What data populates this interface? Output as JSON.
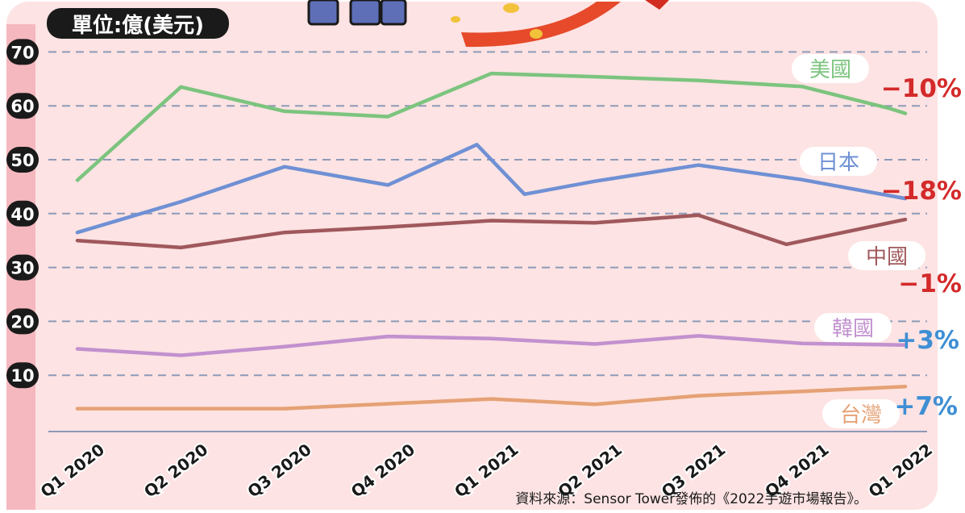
{
  "unit_label": "單位:億(美元)",
  "source_note": "資料來源：Sensor Tower發佈的《2022手遊市場報告》。",
  "colors": {
    "panel": "#fde3e3",
    "left_bar": "#f5b8bf",
    "grid": "#8d9ab8",
    "ytick_bg": "#1a1a1a",
    "negative": "#d42a2a",
    "positive": "#3f8fd4"
  },
  "chart_data": {
    "type": "line",
    "title": "",
    "xlabel": "",
    "ylabel": "單位:億(美元)",
    "ylim": [
      0,
      70
    ],
    "yticks": [
      10,
      20,
      30,
      40,
      50,
      60,
      70
    ],
    "grid": true,
    "categories": [
      "Q1 2020",
      "Q2 2020",
      "Q3 2020",
      "Q4 2020",
      "Q1 2021",
      "Q2 2021",
      "Q3 2021",
      "Q4 2021",
      "Q1 2022"
    ],
    "series": [
      {
        "name": "美國",
        "color": "#7cc47f",
        "change": "−10%",
        "change_type": "negative",
        "points": [
          [
            0,
            46.2
          ],
          [
            1,
            63.5
          ],
          [
            2,
            59.0
          ],
          [
            3,
            58.0
          ],
          [
            4,
            66.0
          ],
          [
            5,
            65.4
          ],
          [
            6,
            64.7
          ],
          [
            7,
            63.6
          ],
          [
            7.85,
            59.5
          ],
          [
            8,
            58.6
          ]
        ]
      },
      {
        "name": "日本",
        "color": "#6f90d4",
        "change": "−18%",
        "change_type": "negative",
        "points": [
          [
            0,
            36.5
          ],
          [
            1,
            42.2
          ],
          [
            2,
            48.7
          ],
          [
            3,
            45.3
          ],
          [
            3.86,
            52.8
          ],
          [
            4.32,
            43.6
          ],
          [
            5,
            46.0
          ],
          [
            6,
            49.0
          ],
          [
            7,
            46.3
          ],
          [
            8,
            42.8
          ]
        ]
      },
      {
        "name": "中國",
        "color": "#a0585c",
        "change": "−1%",
        "change_type": "negative",
        "points": [
          [
            0,
            35.0
          ],
          [
            1,
            33.7
          ],
          [
            2,
            36.5
          ],
          [
            3,
            37.5
          ],
          [
            4,
            38.7
          ],
          [
            5,
            38.3
          ],
          [
            6,
            39.7
          ],
          [
            6.85,
            34.3
          ],
          [
            8,
            38.9
          ]
        ]
      },
      {
        "name": "韓國",
        "color": "#c291cf",
        "change": "+3%",
        "change_type": "positive",
        "points": [
          [
            0,
            14.9
          ],
          [
            1,
            13.7
          ],
          [
            2,
            15.3
          ],
          [
            3,
            17.2
          ],
          [
            4,
            16.8
          ],
          [
            5,
            15.8
          ],
          [
            6,
            17.3
          ],
          [
            7,
            15.9
          ],
          [
            8,
            15.6
          ]
        ]
      },
      {
        "name": "台灣",
        "color": "#e5a175",
        "change": "+7%",
        "change_type": "positive",
        "points": [
          [
            0,
            3.8
          ],
          [
            1,
            3.8
          ],
          [
            2,
            3.8
          ],
          [
            3,
            4.7
          ],
          [
            4,
            5.6
          ],
          [
            5,
            4.6
          ],
          [
            6,
            6.2
          ],
          [
            7,
            7.0
          ],
          [
            8,
            7.9
          ]
        ]
      }
    ]
  }
}
